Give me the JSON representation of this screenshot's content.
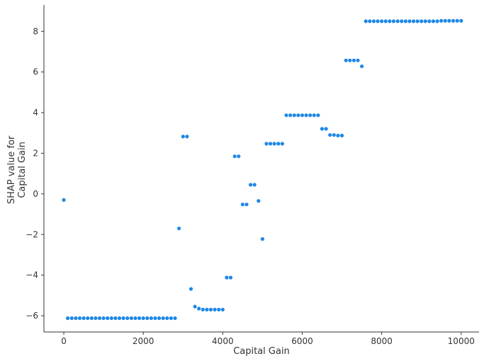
{
  "chart_data": {
    "type": "scatter",
    "xlabel": "Capital Gain",
    "ylabel_lines": [
      "SHAP value for",
      "Capital Gain"
    ],
    "xlim": [
      -500,
      10450
    ],
    "ylim": [
      -6.8,
      9.3
    ],
    "xticks": [
      0,
      2000,
      4000,
      6000,
      8000,
      10000
    ],
    "yticks": [
      -6,
      -4,
      -2,
      0,
      2,
      4,
      6,
      8
    ],
    "marker_color": "#1E88E5",
    "grid": false,
    "legend": "none",
    "points": [
      {
        "x": 0,
        "y": -0.3
      },
      {
        "x": 100,
        "y": -6.12
      },
      {
        "x": 200,
        "y": -6.12
      },
      {
        "x": 300,
        "y": -6.12
      },
      {
        "x": 400,
        "y": -6.12
      },
      {
        "x": 500,
        "y": -6.12
      },
      {
        "x": 600,
        "y": -6.12
      },
      {
        "x": 700,
        "y": -6.12
      },
      {
        "x": 800,
        "y": -6.12
      },
      {
        "x": 900,
        "y": -6.12
      },
      {
        "x": 1000,
        "y": -6.12
      },
      {
        "x": 1100,
        "y": -6.12
      },
      {
        "x": 1200,
        "y": -6.12
      },
      {
        "x": 1300,
        "y": -6.12
      },
      {
        "x": 1400,
        "y": -6.12
      },
      {
        "x": 1500,
        "y": -6.12
      },
      {
        "x": 1600,
        "y": -6.12
      },
      {
        "x": 1700,
        "y": -6.12
      },
      {
        "x": 1800,
        "y": -6.12
      },
      {
        "x": 1900,
        "y": -6.12
      },
      {
        "x": 2000,
        "y": -6.12
      },
      {
        "x": 2100,
        "y": -6.12
      },
      {
        "x": 2200,
        "y": -6.12
      },
      {
        "x": 2300,
        "y": -6.12
      },
      {
        "x": 2400,
        "y": -6.12
      },
      {
        "x": 2500,
        "y": -6.12
      },
      {
        "x": 2600,
        "y": -6.12
      },
      {
        "x": 2700,
        "y": -6.12
      },
      {
        "x": 2800,
        "y": -6.12
      },
      {
        "x": 2900,
        "y": -1.7
      },
      {
        "x": 3000,
        "y": 2.82
      },
      {
        "x": 3100,
        "y": 2.82
      },
      {
        "x": 3200,
        "y": -4.68
      },
      {
        "x": 3300,
        "y": -5.55
      },
      {
        "x": 3400,
        "y": -5.65
      },
      {
        "x": 3500,
        "y": -5.7
      },
      {
        "x": 3600,
        "y": -5.7
      },
      {
        "x": 3700,
        "y": -5.7
      },
      {
        "x": 3800,
        "y": -5.7
      },
      {
        "x": 3900,
        "y": -5.7
      },
      {
        "x": 4000,
        "y": -5.7
      },
      {
        "x": 4100,
        "y": -4.12
      },
      {
        "x": 4200,
        "y": -4.12
      },
      {
        "x": 4300,
        "y": 1.85
      },
      {
        "x": 4400,
        "y": 1.85
      },
      {
        "x": 4500,
        "y": -0.52
      },
      {
        "x": 4600,
        "y": -0.52
      },
      {
        "x": 4700,
        "y": 0.45
      },
      {
        "x": 4800,
        "y": 0.45
      },
      {
        "x": 4900,
        "y": -0.35
      },
      {
        "x": 5000,
        "y": -2.22
      },
      {
        "x": 5100,
        "y": 2.47
      },
      {
        "x": 5200,
        "y": 2.47
      },
      {
        "x": 5300,
        "y": 2.47
      },
      {
        "x": 5400,
        "y": 2.47
      },
      {
        "x": 5500,
        "y": 2.47
      },
      {
        "x": 5600,
        "y": 3.87
      },
      {
        "x": 5700,
        "y": 3.87
      },
      {
        "x": 5800,
        "y": 3.87
      },
      {
        "x": 5900,
        "y": 3.87
      },
      {
        "x": 6000,
        "y": 3.87
      },
      {
        "x": 6100,
        "y": 3.87
      },
      {
        "x": 6200,
        "y": 3.87
      },
      {
        "x": 6300,
        "y": 3.87
      },
      {
        "x": 6400,
        "y": 3.87
      },
      {
        "x": 6500,
        "y": 3.2
      },
      {
        "x": 6600,
        "y": 3.2
      },
      {
        "x": 6700,
        "y": 2.9
      },
      {
        "x": 6800,
        "y": 2.9
      },
      {
        "x": 6900,
        "y": 2.87
      },
      {
        "x": 7000,
        "y": 2.87
      },
      {
        "x": 7100,
        "y": 6.57
      },
      {
        "x": 7200,
        "y": 6.57
      },
      {
        "x": 7300,
        "y": 6.57
      },
      {
        "x": 7400,
        "y": 6.57
      },
      {
        "x": 7500,
        "y": 6.28
      },
      {
        "x": 7600,
        "y": 8.5
      },
      {
        "x": 7700,
        "y": 8.5
      },
      {
        "x": 7800,
        "y": 8.5
      },
      {
        "x": 7900,
        "y": 8.5
      },
      {
        "x": 8000,
        "y": 8.5
      },
      {
        "x": 8100,
        "y": 8.5
      },
      {
        "x": 8200,
        "y": 8.5
      },
      {
        "x": 8300,
        "y": 8.5
      },
      {
        "x": 8400,
        "y": 8.5
      },
      {
        "x": 8500,
        "y": 8.5
      },
      {
        "x": 8600,
        "y": 8.5
      },
      {
        "x": 8700,
        "y": 8.5
      },
      {
        "x": 8800,
        "y": 8.5
      },
      {
        "x": 8900,
        "y": 8.5
      },
      {
        "x": 9000,
        "y": 8.5
      },
      {
        "x": 9100,
        "y": 8.5
      },
      {
        "x": 9200,
        "y": 8.5
      },
      {
        "x": 9300,
        "y": 8.5
      },
      {
        "x": 9400,
        "y": 8.5
      },
      {
        "x": 9500,
        "y": 8.52
      },
      {
        "x": 9600,
        "y": 8.52
      },
      {
        "x": 9700,
        "y": 8.52
      },
      {
        "x": 9800,
        "y": 8.52
      },
      {
        "x": 9900,
        "y": 8.52
      },
      {
        "x": 10000,
        "y": 8.52
      }
    ]
  }
}
